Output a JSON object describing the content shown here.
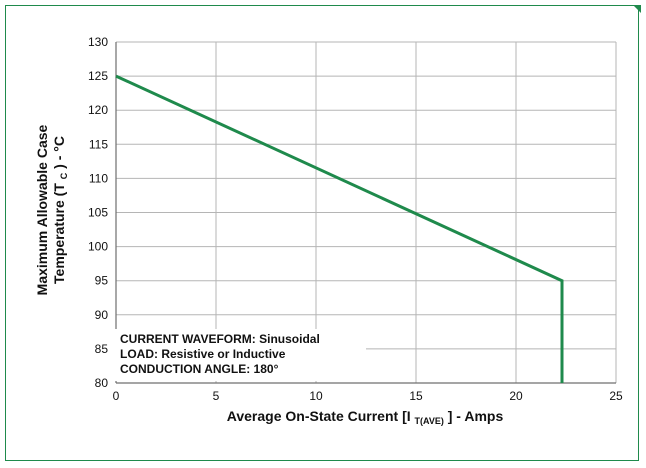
{
  "chart_data": {
    "type": "line",
    "title": "",
    "xlabel": {
      "main": "Average On-State Current [I",
      "subscript_main": "T(AVE)",
      "suffix": "] - Amps"
    },
    "ylabel": {
      "line1": "Maximum Allowable Case",
      "line2_prefix": "Temperature (T",
      "line2_sub": "C",
      "line2_suffix": ") - °C"
    },
    "xlim": [
      0,
      25
    ],
    "ylim": [
      80,
      130
    ],
    "x_ticks": [
      0,
      5,
      10,
      15,
      20,
      25
    ],
    "y_ticks": [
      80,
      85,
      90,
      95,
      100,
      105,
      110,
      115,
      120,
      125,
      130
    ],
    "grid": true,
    "series": [
      {
        "points": [
          {
            "x": 0,
            "y": 125
          },
          {
            "x": 22.3,
            "y": 95
          },
          {
            "x": 22.3,
            "y": 80
          }
        ]
      }
    ],
    "annotations": [
      "CURRENT WAVEFORM: Sinusoidal",
      "LOAD: Resistive or Inductive",
      "CONDUCTION ANGLE: 180°"
    ],
    "colors": {
      "line": "#1f8a4c",
      "grid": "#b5b5b5",
      "frame": "#1f8a4c",
      "axes": "#6f6f6f"
    }
  }
}
